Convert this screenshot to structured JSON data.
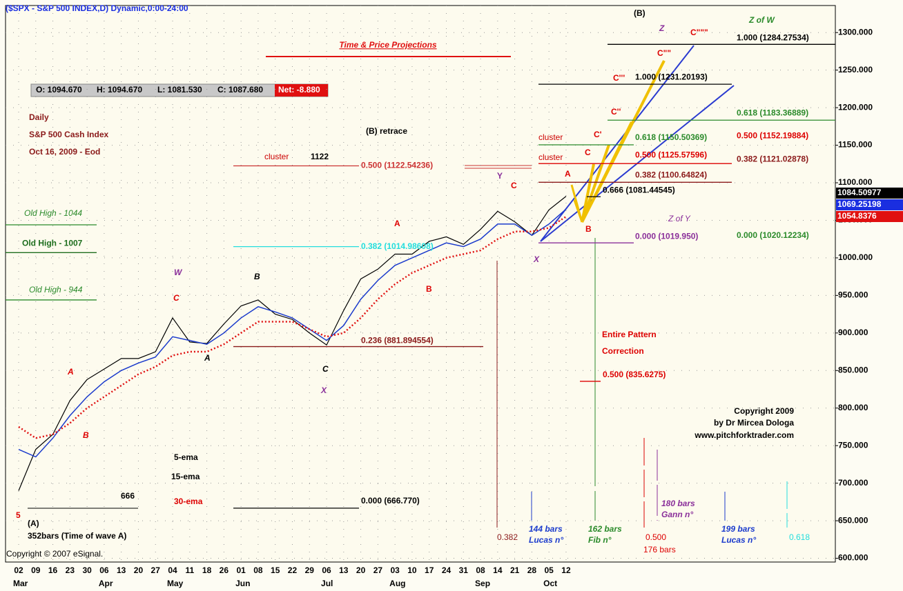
{
  "chart_data": {
    "type": "line",
    "header": "($SPX - S&P 500 INDEX,D) Dynamic,0:00-24:00",
    "title": "Time & Price Projections",
    "info": [
      "Daily",
      "S&P 500 Cash Index",
      "Oct 16, 2009 - Eod"
    ],
    "ohlc": [
      "O: 1094.670",
      "H: 1094.670",
      "L: 1081.530",
      "C: 1087.680",
      "Net: -8.880"
    ],
    "copyright": [
      "Copyright 2009",
      "by Dr Mircea Dologa",
      "www.pitchforktrader.com"
    ],
    "esignal": "Copyright © 2007 eSignal.",
    "categories": [
      "02",
      "09",
      "16",
      "23",
      "30",
      "06",
      "13",
      "20",
      "27",
      "04",
      "11",
      "18",
      "26",
      "01",
      "08",
      "15",
      "22",
      "29",
      "06",
      "13",
      "20",
      "27",
      "03",
      "10",
      "17",
      "24",
      "31",
      "08",
      "14",
      "21",
      "28",
      "05",
      "12"
    ],
    "months": [
      "Mar",
      "Apr",
      "May",
      "Jun",
      "Jul",
      "Aug",
      "Sep",
      "Oct"
    ],
    "series": [
      {
        "name": "5-ema",
        "color": "#000000",
        "values": [
          690,
          745,
          765,
          810,
          838,
          852,
          866,
          866,
          875,
          920,
          888,
          886,
          912,
          936,
          944,
          925,
          918,
          900,
          884,
          930,
          972,
          985,
          1005,
          1005,
          1022,
          1028,
          1018,
          1038,
          1062,
          1048,
          1030,
          1064,
          1082
        ]
      },
      {
        "name": "15-ema",
        "color": "#1a3acc",
        "values": [
          745,
          735,
          760,
          790,
          815,
          835,
          850,
          860,
          868,
          895,
          890,
          885,
          900,
          920,
          935,
          928,
          920,
          905,
          890,
          910,
          945,
          970,
          990,
          1000,
          1010,
          1020,
          1015,
          1025,
          1045,
          1045,
          1030,
          1045,
          1065
        ]
      },
      {
        "name": "30-ema",
        "color": "#e01010",
        "values": [
          775,
          760,
          765,
          780,
          800,
          815,
          830,
          845,
          855,
          870,
          875,
          875,
          885,
          900,
          915,
          915,
          915,
          905,
          895,
          900,
          920,
          945,
          965,
          980,
          990,
          1000,
          1005,
          1010,
          1025,
          1035,
          1035,
          1040,
          1055
        ]
      }
    ],
    "ylim": [
      595,
      1336
    ],
    "yticks": [
      {
        "value": 600,
        "label": "600.000"
      },
      {
        "value": 650,
        "label": "650.000"
      },
      {
        "value": 700,
        "label": "700.000"
      },
      {
        "value": 750,
        "label": "750.000"
      },
      {
        "value": 800,
        "label": "800.000"
      },
      {
        "value": 850,
        "label": "850.000"
      },
      {
        "value": 900,
        "label": "900.000"
      },
      {
        "value": 950,
        "label": "950.000"
      },
      {
        "value": 1000,
        "label": "1000.000"
      },
      {
        "value": 1050,
        "label": "1050.000"
      },
      {
        "value": 1100,
        "label": "1100.000"
      },
      {
        "value": 1150,
        "label": "1150.000"
      },
      {
        "value": 1200,
        "label": "1200.000"
      },
      {
        "value": 1250,
        "label": "1250.000"
      },
      {
        "value": 1300,
        "label": "1300.000"
      }
    ],
    "grid": true,
    "price_flags": [
      {
        "value": 1084.50977,
        "color": "#000000"
      },
      {
        "value": 1069.25198,
        "color": "#1a2ee0"
      },
      {
        "value": 1054.8376,
        "color": "#e01010"
      }
    ],
    "levels": [
      {
        "label": "Old High - 1044",
        "value": 1044
      },
      {
        "label": "Old High - 1007",
        "value": 1007
      },
      {
        "label": "Old High - 944",
        "value": 944
      },
      {
        "label": "0.500 (1122.54236)",
        "value": 1122.54236
      },
      {
        "label": "0.382 (1014.98608)",
        "value": 1014.98608
      },
      {
        "label": "0.236 (881.894554)",
        "value": 881.894554
      },
      {
        "label": "0.000 (666.770)",
        "value": 666.77
      },
      {
        "label": "1.000 (1284.27534)",
        "value": 1284.27534
      },
      {
        "label": "1.000 (1231.20193)",
        "value": 1231.20193
      },
      {
        "label": "0.618 (1183.36889)",
        "value": 1183.36889
      },
      {
        "label": "0.618 (1150.50369)",
        "value": 1150.50369
      },
      {
        "label": "0.500 (1152.19884)",
        "value": 1152.19884
      },
      {
        "label": "0.500 (1125.57596)",
        "value": 1125.57596
      },
      {
        "label": "0.382 (1121.02878)",
        "value": 1121.02878
      },
      {
        "label": "0.382 (1100.64824)",
        "value": 1100.64824
      },
      {
        "label": "0.666 (1081.44545)",
        "value": 1081.44545
      },
      {
        "label": "0.000 (1019.950)",
        "value": 1019.95
      },
      {
        "label": "0.000 (1020.12234)",
        "value": 1020.12234
      },
      {
        "label": "0.500 (835.6275)",
        "value": 835.6275
      }
    ],
    "annotations": [
      "(B) retrace",
      "cluster",
      "1122",
      "(B)",
      "Z",
      "C\"\"\"",
      "C\"\"",
      "C'''",
      "C''",
      "C'",
      "C",
      "Z of W",
      "Z of Y",
      "cluster",
      "cluster",
      "A",
      "B",
      "X",
      "Y",
      "C",
      "A",
      "B",
      "W",
      "C",
      "B",
      "A",
      "C",
      "X",
      "A",
      "B",
      "5",
      "(A)",
      "352bars  (Time of wave A)",
      "666",
      "Entire Pattern",
      "Correction",
      "0.382",
      "144 bars",
      "Lucas n°",
      "162 bars",
      "Fib n°",
      "0.500",
      "176 bars",
      "180 bars",
      "Gann n°",
      "199 bars",
      "Lucas n°",
      "0.618"
    ]
  }
}
